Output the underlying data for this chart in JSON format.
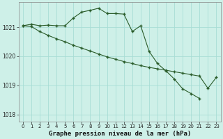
{
  "bg_color": "#cef0e8",
  "grid_color": "#a8ddd5",
  "line_color": "#2a5c2a",
  "xlabel": "Graphe pression niveau de la mer (hPa)",
  "xlabel_fontsize": 6.5,
  "ylim": [
    1017.75,
    1021.85
  ],
  "xlim": [
    -0.5,
    23.5
  ],
  "yticks": [
    1018,
    1019,
    1020,
    1021
  ],
  "xticks": [
    0,
    1,
    2,
    3,
    4,
    5,
    6,
    7,
    8,
    9,
    10,
    11,
    12,
    13,
    14,
    15,
    16,
    17,
    18,
    19,
    20,
    21,
    22,
    23
  ],
  "line1_x": [
    0,
    1,
    2,
    3,
    4,
    5,
    6,
    7,
    8,
    9,
    10,
    11,
    12,
    13,
    14,
    15,
    16,
    17,
    18,
    19,
    20,
    21
  ],
  "line1_y": [
    1021.05,
    1021.1,
    1021.05,
    1021.07,
    1021.05,
    1021.05,
    1021.32,
    1021.52,
    1021.58,
    1021.65,
    1021.47,
    1021.47,
    1021.45,
    1020.85,
    1021.05,
    1020.17,
    1019.75,
    1019.5,
    1019.22,
    1018.88,
    1018.72,
    1018.55
  ],
  "line2_x": [
    0,
    1,
    2,
    3,
    4,
    5,
    6,
    7,
    8,
    9,
    10,
    11,
    12,
    13,
    14,
    15,
    16,
    17,
    18,
    19,
    20,
    21,
    22,
    23
  ],
  "line2_y": [
    1021.05,
    1021.02,
    1020.85,
    1020.72,
    1020.6,
    1020.5,
    1020.38,
    1020.28,
    1020.18,
    1020.08,
    1019.98,
    1019.9,
    1019.82,
    1019.75,
    1019.68,
    1019.62,
    1019.57,
    1019.52,
    1019.47,
    1019.42,
    1019.37,
    1019.32,
    1018.9,
    1019.28
  ]
}
